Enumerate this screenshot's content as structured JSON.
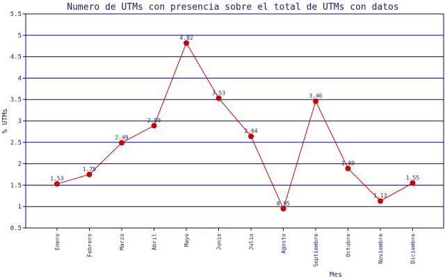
{
  "chart_data": {
    "type": "line",
    "title": "Numero de UTMs con presencia sobre el total de UTMs con datos",
    "xlabel": "Mes",
    "ylabel": "% UTMs",
    "categories": [
      "Enero",
      "Febrero",
      "Marzo",
      "Abril",
      "Mayo",
      "Junio",
      "Julio",
      "Agosto",
      "Septiembre",
      "Octubre",
      "Noviembre",
      "Diciembre"
    ],
    "values": [
      1.53,
      1.75,
      2.49,
      2.89,
      4.82,
      3.53,
      2.64,
      0.95,
      3.46,
      1.89,
      1.13,
      1.55
    ],
    "data_labels": [
      "1.53",
      "1.75",
      "2.49",
      "2.89",
      "4.82",
      "3.53",
      "2.64",
      "0.95",
      "3.46",
      "1.89",
      "1.13",
      "1.55"
    ],
    "ylim": [
      0.5,
      5.5
    ],
    "yticks": [
      "0.5",
      "1",
      "1.5",
      "2",
      "2.5",
      "3",
      "3.5",
      "4",
      "4.5",
      "5",
      "5.5"
    ],
    "grid": true,
    "colors": {
      "line": "#cc0000",
      "marker": "#cc0000",
      "grid": "#000080",
      "text": "#1a1a7a",
      "frame": "#000080"
    }
  }
}
